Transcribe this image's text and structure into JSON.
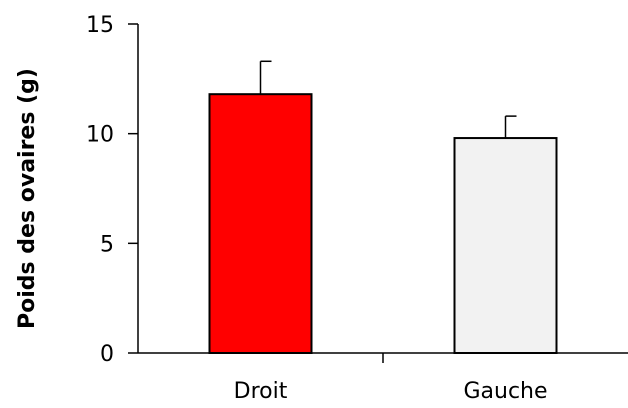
{
  "chart_data": {
    "type": "bar",
    "title": "",
    "xlabel": "",
    "ylabel": "Poids des ovaires (g)",
    "categories": [
      "Droit",
      "Gauche"
    ],
    "values": [
      11.8,
      9.8
    ],
    "errors": [
      1.5,
      1.0
    ],
    "ylim": [
      0,
      15
    ],
    "yticks": [
      0,
      5,
      10,
      15
    ],
    "bar_colors": [
      "#ff0000",
      "#f2f2f2"
    ],
    "grid": false,
    "legend": "none"
  }
}
